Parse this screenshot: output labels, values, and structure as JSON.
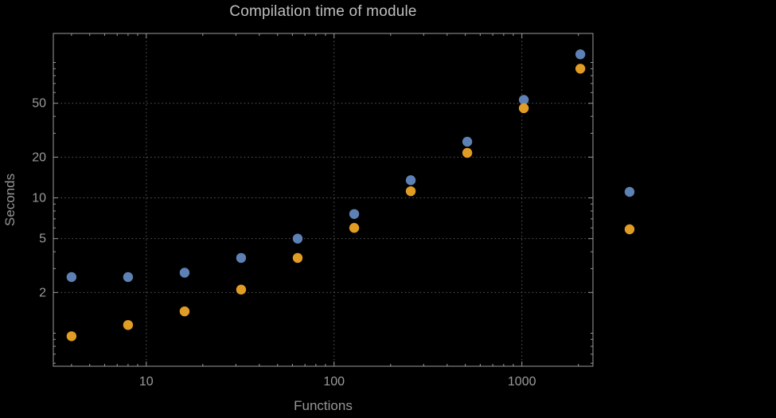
{
  "colors": {
    "background": "#000000",
    "frame": "#9b9b9b",
    "grid": "#5a5a5a",
    "tick_text": "#9b9b9b",
    "title_text": "#bebebe",
    "label_text": "#969696",
    "series_blue": "#5E81B5",
    "series_orange": "#E19C24"
  },
  "chart_data": {
    "type": "scatter",
    "title": "Compilation time of module",
    "xlabel": "Functions",
    "ylabel": "Seconds",
    "x_scale": "log",
    "y_scale": "log",
    "xlim": [
      3.2,
      2390
    ],
    "ylim": [
      0.57,
      164
    ],
    "x_ticks": [
      10,
      100,
      1000
    ],
    "y_ticks": [
      2,
      5,
      10,
      20,
      50
    ],
    "grid": "dotted",
    "series": [
      {
        "name": "series-1-blue",
        "color": "#5E81B5",
        "x": [
          4,
          8,
          16,
          32,
          64,
          128,
          256,
          512,
          1024,
          2048
        ],
        "y": [
          2.6,
          2.6,
          2.8,
          3.6,
          5.0,
          7.6,
          13.5,
          26,
          53,
          115
        ]
      },
      {
        "name": "series-2-orange",
        "color": "#E19C24",
        "x": [
          4,
          8,
          16,
          32,
          64,
          128,
          256,
          512,
          1024,
          2048
        ],
        "y": [
          0.95,
          1.15,
          1.45,
          2.1,
          3.6,
          6.0,
          11.2,
          21.5,
          46,
          90
        ]
      }
    ],
    "legend": {
      "position": "right-of-frame",
      "entries": [
        {
          "label": "",
          "color": "#5E81B5"
        },
        {
          "label": "",
          "color": "#E19C24"
        }
      ]
    }
  }
}
